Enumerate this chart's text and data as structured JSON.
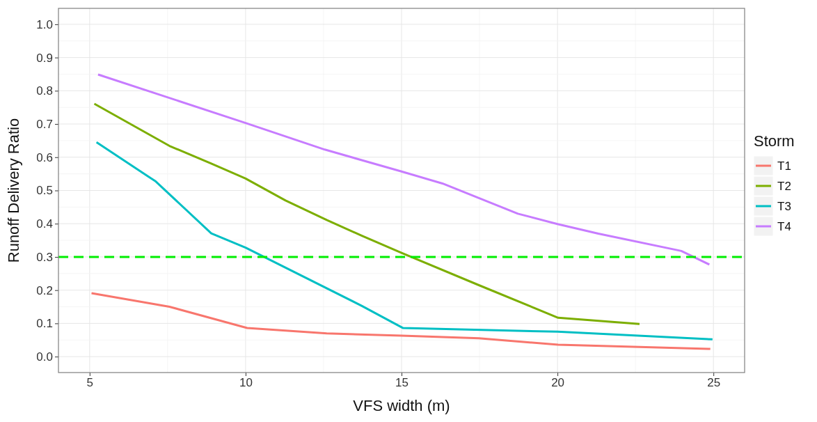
{
  "chart_data": {
    "type": "line",
    "xlabel": "VFS width (m)",
    "ylabel": "Runoff Delivery Ratio",
    "legend_title": "Storm",
    "legend": "right",
    "grid": true,
    "line_style": "solid",
    "xlim": [
      4.0,
      26.0
    ],
    "xticks": [
      5,
      10,
      15,
      20,
      25
    ],
    "ylim": [
      -0.048,
      1.048
    ],
    "yticks": [
      {
        "value": 0,
        "label": "0.0"
      },
      {
        "value": 0.1,
        "label": "0.1"
      },
      {
        "value": 0.2,
        "label": "0.2"
      },
      {
        "value": 0.3,
        "label": "0.3"
      },
      {
        "value": 0.4,
        "label": "0.4"
      },
      {
        "value": 0.5,
        "label": "0.5"
      },
      {
        "value": 0.6,
        "label": "0.6"
      },
      {
        "value": 0.7,
        "label": "0.7"
      },
      {
        "value": 0.8,
        "label": "0.8"
      },
      {
        "value": 0.9,
        "label": "0.9"
      },
      {
        "value": 1,
        "label": "1.0"
      }
    ],
    "series": [
      {
        "name": "T1",
        "color": "#f8766d",
        "x": [
          5.06,
          7.56,
          10.05,
          12.6,
          15,
          17.48,
          20.02,
          24.9
        ],
        "values": [
          0.191,
          0.15,
          0.086,
          0.07,
          0.063,
          0.055,
          0.036,
          0.023
        ]
      },
      {
        "name": "T2",
        "color": "#7cae00",
        "x": [
          5.15,
          7.56,
          8.9,
          10,
          11.28,
          12.6,
          13.72,
          15,
          17.48,
          20.02,
          22.63
        ],
        "values": [
          0.761,
          0.634,
          0.581,
          0.536,
          0.47,
          0.411,
          0.364,
          0.312,
          0.215,
          0.117,
          0.098
        ]
      },
      {
        "name": "T3",
        "color": "#00bfc4",
        "x": [
          5.22,
          7.12,
          8.9,
          10,
          13.72,
          15.05,
          20,
          24.97
        ],
        "values": [
          0.645,
          0.527,
          0.371,
          0.328,
          0.153,
          0.086,
          0.075,
          0.052
        ]
      },
      {
        "name": "T4",
        "color": "#c77cff",
        "x": [
          5.27,
          10,
          12.54,
          15,
          16.31,
          18.73,
          20,
          21.31,
          23.97,
          24.87
        ],
        "values": [
          0.849,
          0.703,
          0.623,
          0.557,
          0.521,
          0.43,
          0.399,
          0.37,
          0.318,
          0.277
        ]
      }
    ],
    "ref_lines": [
      {
        "axis": "y",
        "value": 0.3,
        "color": "#00ee00",
        "line_style": "dashed"
      }
    ]
  }
}
